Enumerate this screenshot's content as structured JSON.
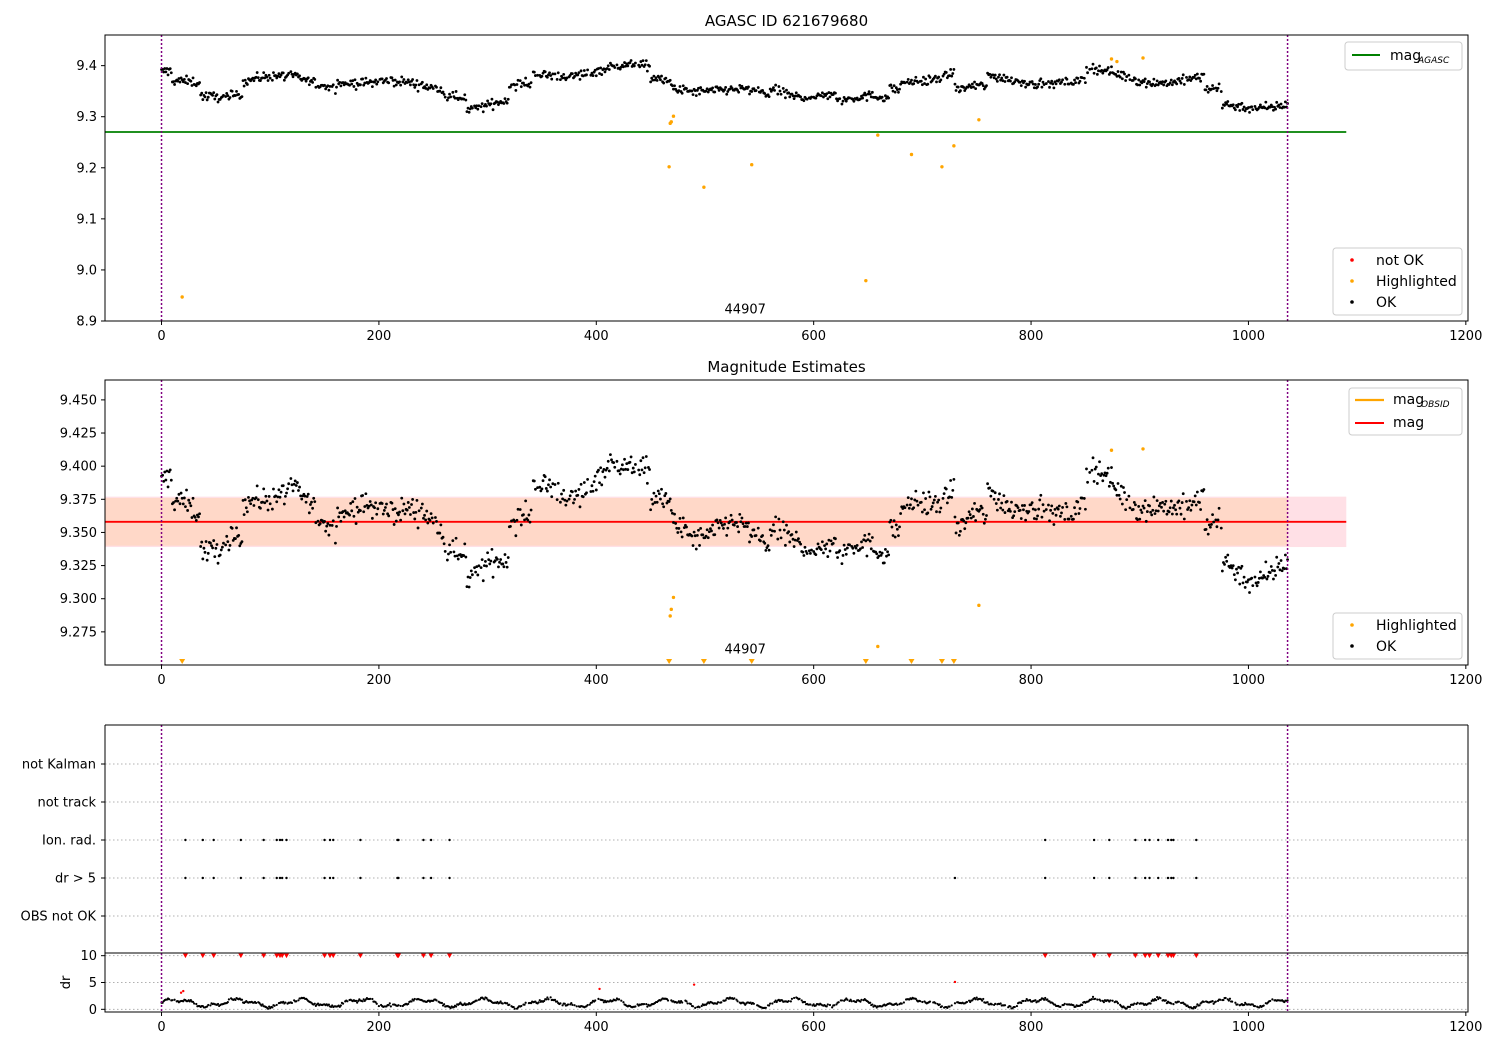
{
  "figure": {
    "top_title": "AGASC ID 621679680",
    "middle_title": "Magnitude Estimates",
    "obsid_annotation": "44907"
  },
  "colors": {
    "ok": "#000000",
    "highlighted": "#ffa500",
    "not_ok": "#ff0000",
    "agasc_line": "#008000",
    "mag_line": "#ff0000",
    "obsid_line": "#ffa500",
    "band_outer": "#ffe0e6",
    "band_inner": "#ffd8c8",
    "boundary": "#800080"
  },
  "chart_data": [
    {
      "id": "top",
      "type": "scatter",
      "title": "AGASC ID 621679680",
      "xlim": [
        -52,
        1202
      ],
      "ylim": [
        8.9,
        9.46
      ],
      "xticks": [
        0,
        200,
        400,
        600,
        800,
        1000,
        1200
      ],
      "yticks": [
        "8.9",
        "9.0",
        "9.1",
        "9.2",
        "9.3",
        "9.4"
      ],
      "vlines": [
        0,
        1036
      ],
      "hline_mag_agasc": 9.27,
      "hline_xrange": [
        -52,
        1090
      ],
      "legend_upper": [
        {
          "name": "mag",
          "subscript": "AGASC",
          "kind": "line",
          "color": "#008000"
        }
      ],
      "legend_lower": [
        {
          "name": "not OK",
          "color": "#ff0000"
        },
        {
          "name": "Highlighted",
          "color": "#ffa500"
        },
        {
          "name": "OK",
          "color": "#000000"
        }
      ],
      "annotation": {
        "text": "44907",
        "x": 518,
        "y": 8.915
      },
      "highlighted": [
        [
          19,
          8.947
        ],
        [
          467,
          9.202
        ],
        [
          468,
          9.287
        ],
        [
          469,
          9.29
        ],
        [
          471,
          9.301
        ],
        [
          499,
          9.162
        ],
        [
          543,
          9.206
        ],
        [
          648,
          8.979
        ],
        [
          659,
          9.264
        ],
        [
          690,
          9.226
        ],
        [
          718,
          9.202
        ],
        [
          729,
          9.243
        ],
        [
          752,
          9.294
        ],
        [
          874,
          9.413
        ],
        [
          879,
          9.408
        ],
        [
          903,
          9.415
        ]
      ]
    },
    {
      "id": "middle",
      "type": "scatter",
      "title": "Magnitude Estimates",
      "xlim": [
        -52,
        1202
      ],
      "ylim": [
        9.25,
        9.465
      ],
      "xticks": [
        0,
        200,
        400,
        600,
        800,
        1000,
        1200
      ],
      "yticks": [
        "9.275",
        "9.300",
        "9.325",
        "9.350",
        "9.375",
        "9.400",
        "9.425",
        "9.450"
      ],
      "vlines": [
        0,
        1036
      ],
      "mag": 9.358,
      "band_outer": [
        9.339,
        9.377
      ],
      "band_inner": [
        9.34,
        9.376
      ],
      "band_xrange": [
        -52,
        1090
      ],
      "legend_upper": [
        {
          "name": "mag",
          "subscript": "OBSID",
          "kind": "line",
          "color": "#ffa500"
        },
        {
          "name": "mag",
          "subscript": "",
          "kind": "line",
          "color": "#ff0000"
        }
      ],
      "legend_lower": [
        {
          "name": "Highlighted",
          "color": "#ffa500"
        },
        {
          "name": "OK",
          "color": "#000000"
        }
      ],
      "annotation": {
        "text": "44907",
        "x": 518,
        "y": 9.26
      },
      "highlighted": [
        [
          468,
          9.287
        ],
        [
          469,
          9.292
        ],
        [
          471,
          9.301
        ],
        [
          659,
          9.264
        ],
        [
          752,
          9.295
        ],
        [
          874,
          9.412
        ],
        [
          903,
          9.413
        ]
      ],
      "out_of_range": [
        19,
        467,
        499,
        543,
        648,
        690,
        718,
        729
      ]
    },
    {
      "id": "flags",
      "type": "scatter",
      "categories": [
        "OBS not OK",
        "dr > 5",
        "Ion. rad.",
        "not track",
        "not Kalman"
      ],
      "xlim": [
        -52,
        1202
      ],
      "vlines": [
        0,
        1036
      ],
      "flag_x": [
        22,
        38,
        48,
        73,
        94,
        106,
        109,
        111,
        115,
        150,
        155,
        158,
        183,
        217,
        218,
        241,
        248,
        265,
        813,
        858,
        872,
        896,
        905,
        909,
        917,
        926,
        929,
        931,
        952
      ],
      "dr5_only_x": [
        730
      ]
    },
    {
      "id": "dr",
      "type": "scatter",
      "ylabel": "dr",
      "xlim": [
        -52,
        1202
      ],
      "ylim": [
        -0.5,
        10.5
      ],
      "xticks": [
        0,
        200,
        400,
        600,
        800,
        1000,
        1200
      ],
      "yticks": [
        "0",
        "5",
        "10"
      ],
      "vlines": [
        0,
        1036
      ],
      "red_points": [
        [
          18,
          3.1
        ],
        [
          20,
          3.4
        ],
        [
          403,
          3.8
        ],
        [
          490,
          4.6
        ],
        [
          730,
          5.1
        ]
      ],
      "clipped_x": [
        22,
        38,
        48,
        73,
        94,
        106,
        109,
        111,
        115,
        150,
        155,
        158,
        183,
        217,
        218,
        241,
        248,
        265,
        813,
        858,
        872,
        896,
        905,
        909,
        917,
        926,
        929,
        931,
        952
      ]
    }
  ]
}
